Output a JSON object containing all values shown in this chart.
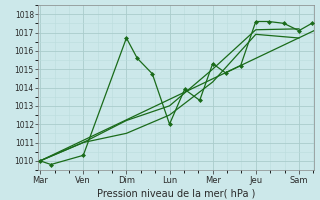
{
  "background_color": "#cce8ea",
  "grid_major_color": "#aacccc",
  "grid_minor_color": "#bbdddd",
  "line_color": "#1a6b1a",
  "marker_color": "#1a6b1a",
  "xlabel": "Pression niveau de la mer( hPa )",
  "ylim": [
    1009.5,
    1018.5
  ],
  "xlim": [
    -0.05,
    6.35
  ],
  "yticks": [
    1010,
    1011,
    1012,
    1013,
    1014,
    1015,
    1016,
    1017,
    1018
  ],
  "day_labels": [
    "Mar",
    "Ven",
    "Dim",
    "Lun",
    "Mer",
    "Jeu",
    "Sam"
  ],
  "day_positions": [
    0,
    1,
    2,
    3,
    4,
    5,
    6
  ],
  "series1_x": [
    0.0,
    0.25,
    1.0,
    2.0,
    2.25,
    2.6,
    3.0,
    3.35,
    3.7,
    4.0,
    4.3,
    4.65,
    5.0,
    5.3,
    5.65,
    6.0,
    6.3
  ],
  "series1_y": [
    1010.0,
    1009.8,
    1010.3,
    1016.7,
    1015.6,
    1014.75,
    1012.0,
    1013.9,
    1013.3,
    1015.3,
    1014.8,
    1015.2,
    1017.6,
    1017.6,
    1017.5,
    1017.1,
    1017.5
  ],
  "series2_x": [
    0.0,
    1.0,
    2.0,
    3.0,
    4.0,
    5.0,
    6.0
  ],
  "series2_y": [
    1010.0,
    1011.0,
    1012.2,
    1013.0,
    1015.0,
    1017.15,
    1017.2
  ],
  "series3_x": [
    0.0,
    1.0,
    2.0,
    3.0,
    4.0,
    5.0,
    6.0
  ],
  "series3_y": [
    1010.0,
    1011.0,
    1011.5,
    1012.5,
    1014.3,
    1016.9,
    1016.7
  ],
  "series4_x": [
    0.0,
    6.35
  ],
  "series4_y": [
    1010.0,
    1017.1
  ]
}
